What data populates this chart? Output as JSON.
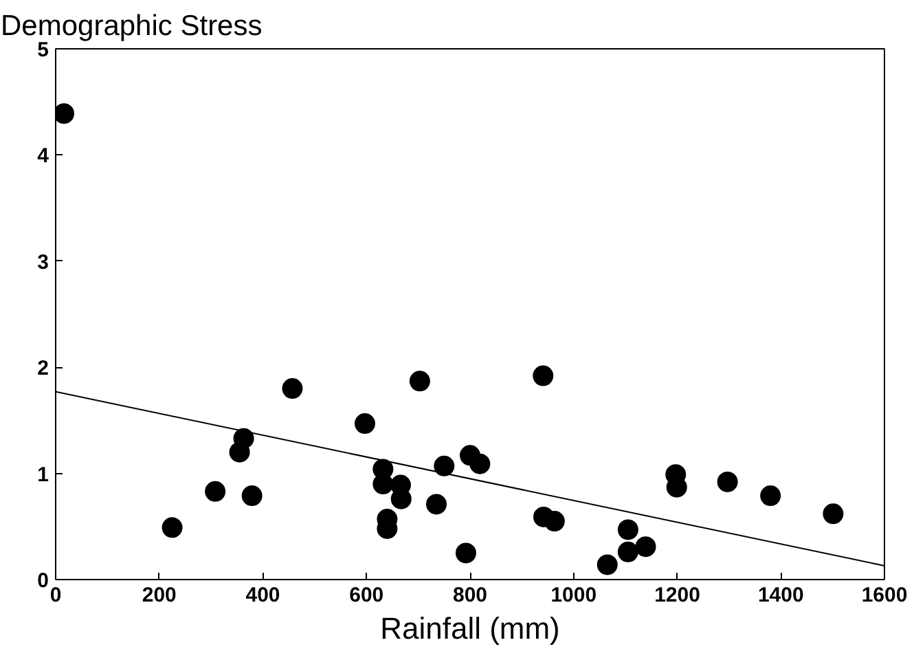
{
  "chart_data": {
    "type": "scatter",
    "title": "Demographic Stress",
    "xlabel": "Rainfall (mm)",
    "xlim": [
      0,
      1600
    ],
    "xticks": [
      0,
      200,
      400,
      600,
      800,
      1000,
      1200,
      1400,
      1600
    ],
    "ylim": [
      0,
      5
    ],
    "yticks": [
      0,
      1,
      2,
      3,
      4,
      5
    ],
    "grid": false,
    "series": [
      {
        "marker": "circle",
        "color": "#000000",
        "x": [
          16,
          225,
          308,
          355,
          363,
          379,
          457,
          597,
          632,
          632,
          640,
          640,
          666,
          667,
          703,
          735,
          750,
          792,
          800,
          819,
          941,
          942,
          963,
          1065,
          1105,
          1105,
          1139,
          1197,
          1199,
          1297,
          1380,
          1501
        ],
        "values": [
          4.39,
          0.49,
          0.83,
          1.2,
          1.33,
          0.79,
          1.8,
          1.47,
          1.04,
          0.9,
          0.57,
          0.48,
          0.89,
          0.76,
          1.87,
          0.71,
          1.07,
          0.25,
          1.17,
          1.09,
          1.92,
          0.59,
          0.55,
          0.14,
          0.47,
          0.26,
          0.31,
          0.99,
          0.87,
          0.92,
          0.79,
          0.62
        ]
      },
      {
        "type": "line",
        "color": "#000000",
        "line_style": "solid",
        "x": [
          0,
          1600
        ],
        "values": [
          1.77,
          0.13
        ]
      }
    ]
  }
}
